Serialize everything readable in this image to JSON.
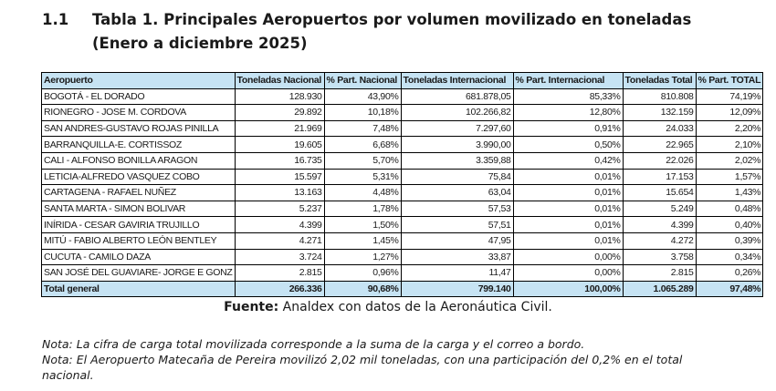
{
  "title": {
    "number": "1.1",
    "text": "Tabla 1. Principales Aeropuertos por volumen movilizado en toneladas (Enero a diciembre 2025)"
  },
  "table": {
    "headers": [
      "Aeropuerto",
      "Toneladas Nacional",
      "% Part. Nacional",
      "Toneladas Internacional",
      "% Part. Internacional",
      "Toneladas Total",
      "% Part. TOTAL"
    ],
    "rows": [
      [
        "BOGOTÁ - EL DORADO",
        "128.930",
        "43,90%",
        "681.878,05",
        "85,33%",
        "810.808",
        "74,19%"
      ],
      [
        "RIONEGRO - JOSE M. CORDOVA",
        "29.892",
        "10,18%",
        "102.266,82",
        "12,80%",
        "132.159",
        "12,09%"
      ],
      [
        "SAN ANDRES-GUSTAVO ROJAS PINILLA",
        "21.969",
        "7,48%",
        "7.297,60",
        "0,91%",
        "24.033",
        "2,20%"
      ],
      [
        "BARRANQUILLA-E. CORTISSOZ",
        "19.605",
        "6,68%",
        "3.990,00",
        "0,50%",
        "22.965",
        "2,10%"
      ],
      [
        "CALI - ALFONSO BONILLA ARAGON",
        "16.735",
        "5,70%",
        "3.359,88",
        "0,42%",
        "22.026",
        "2,02%"
      ],
      [
        "LETICIA-ALFREDO VASQUEZ COBO",
        "15.597",
        "5,31%",
        "75,84",
        "0,01%",
        "17.153",
        "1,57%"
      ],
      [
        "CARTAGENA - RAFAEL NUÑEZ",
        "13.163",
        "4,48%",
        "63,04",
        "0,01%",
        "15.654",
        "1,43%"
      ],
      [
        "SANTA MARTA - SIMON BOLIVAR",
        "5.237",
        "1,78%",
        "57,53",
        "0,01%",
        "5.249",
        "0,48%"
      ],
      [
        "INÍRIDA - CESAR GAVIRIA TRUJILLO",
        "4.399",
        "1,50%",
        "57,51",
        "0,01%",
        "4.399",
        "0,40%"
      ],
      [
        "MITÚ - FABIO ALBERTO LEÓN BENTLEY",
        "4.271",
        "1,45%",
        "47,95",
        "0,01%",
        "4.272",
        "0,39%"
      ],
      [
        "CUCUTA - CAMILO DAZA",
        "3.724",
        "1,27%",
        "33,87",
        "0,00%",
        "3.758",
        "0,34%"
      ],
      [
        "SAN JOSÉ DEL GUAVIARE- JORGE E GONZ",
        "2.815",
        "0,96%",
        "11,47",
        "0,00%",
        "2.815",
        "0,26%"
      ]
    ],
    "total": [
      "Total general",
      "266.336",
      "90,68%",
      "799.140",
      "100,00%",
      "1.065.289",
      "97,48%"
    ]
  },
  "source": {
    "label": "Fuente:",
    "text": " Analdex con datos de la Aeronáutica Civil."
  },
  "notes": [
    "Nota: La cifra de carga total movilizada corresponde a la suma de la carga y el correo a bordo.",
    "Nota: El Aeropuerto Matecaña de Pereira movilizó 2,02 mil toneladas, con una participación del 0,2% en el total nacional."
  ]
}
